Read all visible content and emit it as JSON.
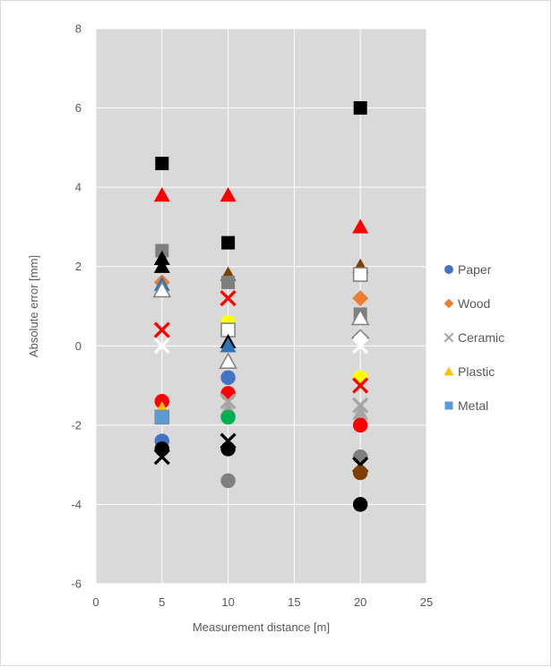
{
  "chart_data": {
    "type": "scatter",
    "title": "",
    "xlabel": "Measurement distance [m]",
    "ylabel": "Absolute error [mm]",
    "xlim": [
      0,
      25
    ],
    "ylim": [
      -6,
      8
    ],
    "x_ticks": [
      "0",
      "5",
      "10",
      "15",
      "20",
      "25"
    ],
    "y_ticks": [
      "-6",
      "-4",
      "-2",
      "0",
      "2",
      "4",
      "6",
      "8"
    ],
    "grid": true,
    "plot_background": "#d9d9d9",
    "legend_position": "right",
    "legend": [
      {
        "name": "Paper",
        "color": "#4472c4",
        "marker": "circle"
      },
      {
        "name": "Wood",
        "color": "#ed7d31",
        "marker": "diamond"
      },
      {
        "name": "Ceramic",
        "color": "#a5a5a5",
        "marker": "x"
      },
      {
        "name": "Plastic",
        "color": "#ffc000",
        "marker": "triangle"
      },
      {
        "name": "Metal",
        "color": "#5b9bd5",
        "marker": "square"
      }
    ],
    "points": [
      {
        "x": 5,
        "y": 4.6,
        "marker": "square",
        "color": "#000000"
      },
      {
        "x": 5,
        "y": 3.8,
        "marker": "triangle",
        "color": "#ff0000"
      },
      {
        "x": 5,
        "y": 2.4,
        "marker": "square",
        "color": "#7f7f7f"
      },
      {
        "x": 5,
        "y": 2.2,
        "marker": "triangle",
        "color": "#000000"
      },
      {
        "x": 5,
        "y": 2.0,
        "marker": "triangle",
        "color": "#000000"
      },
      {
        "x": 5,
        "y": 1.6,
        "marker": "diamond",
        "color": "#ed7d31"
      },
      {
        "x": 5,
        "y": 1.55,
        "marker": "triangle",
        "color": "#2e75b6"
      },
      {
        "x": 5,
        "y": 1.4,
        "marker": "triangle",
        "color": "#ffffff",
        "stroke": "#7f7f7f"
      },
      {
        "x": 5,
        "y": 0.4,
        "marker": "x",
        "color": "#ff0000"
      },
      {
        "x": 5,
        "y": 0.0,
        "marker": "x",
        "color": "#ffffff"
      },
      {
        "x": 5,
        "y": -1.4,
        "marker": "circle",
        "color": "#ff0000"
      },
      {
        "x": 5,
        "y": -1.6,
        "marker": "triangle",
        "color": "#ffc000"
      },
      {
        "x": 5,
        "y": -1.8,
        "marker": "square",
        "color": "#ffffff",
        "stroke": "#7f7f7f"
      },
      {
        "x": 5,
        "y": -1.8,
        "marker": "square",
        "color": "#5b9bd5"
      },
      {
        "x": 5,
        "y": -2.4,
        "marker": "circle",
        "color": "#4472c4"
      },
      {
        "x": 5,
        "y": -2.6,
        "marker": "circle",
        "color": "#000000"
      },
      {
        "x": 5,
        "y": -2.8,
        "marker": "x",
        "color": "#000000"
      },
      {
        "x": 10,
        "y": 3.8,
        "marker": "triangle",
        "color": "#ff0000"
      },
      {
        "x": 10,
        "y": 2.6,
        "marker": "square",
        "color": "#000000"
      },
      {
        "x": 10,
        "y": 1.8,
        "marker": "triangle",
        "color": "#7f3f00"
      },
      {
        "x": 10,
        "y": 1.6,
        "marker": "square",
        "color": "#7f7f7f"
      },
      {
        "x": 10,
        "y": 1.2,
        "marker": "x",
        "color": "#ff0000"
      },
      {
        "x": 10,
        "y": 0.6,
        "marker": "circle",
        "color": "#ffff00"
      },
      {
        "x": 10,
        "y": 0.4,
        "marker": "square",
        "color": "#ffffff",
        "stroke": "#7f7f7f"
      },
      {
        "x": 10,
        "y": 0.1,
        "marker": "triangle",
        "color": "#000000"
      },
      {
        "x": 10,
        "y": 0.0,
        "marker": "triangle",
        "color": "#2e75b6"
      },
      {
        "x": 10,
        "y": -0.4,
        "marker": "triangle",
        "color": "#ffffff",
        "stroke": "#7f7f7f"
      },
      {
        "x": 10,
        "y": -0.8,
        "marker": "circle",
        "color": "#4472c4"
      },
      {
        "x": 10,
        "y": -1.2,
        "marker": "circle",
        "color": "#ff0000"
      },
      {
        "x": 10,
        "y": -1.4,
        "marker": "x",
        "color": "#a5a5a5"
      },
      {
        "x": 10,
        "y": -1.6,
        "marker": "triangle",
        "color": "#a5a5a5"
      },
      {
        "x": 10,
        "y": -1.8,
        "marker": "circle",
        "color": "#00b050"
      },
      {
        "x": 10,
        "y": -2.4,
        "marker": "x",
        "color": "#000000"
      },
      {
        "x": 10,
        "y": -2.6,
        "marker": "circle",
        "color": "#000000"
      },
      {
        "x": 10,
        "y": -3.4,
        "marker": "circle",
        "color": "#7f7f7f"
      },
      {
        "x": 20,
        "y": 6.0,
        "marker": "square",
        "color": "#000000"
      },
      {
        "x": 20,
        "y": 3.0,
        "marker": "triangle",
        "color": "#ff0000"
      },
      {
        "x": 20,
        "y": 2.0,
        "marker": "triangle",
        "color": "#7f3f00"
      },
      {
        "x": 20,
        "y": 1.8,
        "marker": "square",
        "color": "#5b9bd5"
      },
      {
        "x": 20,
        "y": 1.8,
        "marker": "square",
        "color": "#ffffff",
        "stroke": "#7f7f7f"
      },
      {
        "x": 20,
        "y": 1.2,
        "marker": "diamond",
        "color": "#ed7d31"
      },
      {
        "x": 20,
        "y": 0.8,
        "marker": "square",
        "color": "#7f7f7f"
      },
      {
        "x": 20,
        "y": 0.7,
        "marker": "triangle",
        "color": "#ffffff",
        "stroke": "#7f7f7f"
      },
      {
        "x": 20,
        "y": 0.2,
        "marker": "diamond",
        "color": "#ffffff",
        "stroke": "#7f7f7f"
      },
      {
        "x": 20,
        "y": 0.0,
        "marker": "x",
        "color": "#ffffff"
      },
      {
        "x": 20,
        "y": -0.8,
        "marker": "circle",
        "color": "#ffff00"
      },
      {
        "x": 20,
        "y": -1.0,
        "marker": "x",
        "color": "#ff0000"
      },
      {
        "x": 20,
        "y": -1.5,
        "marker": "x",
        "color": "#a5a5a5"
      },
      {
        "x": 20,
        "y": -1.7,
        "marker": "triangle",
        "color": "#a5a5a5"
      },
      {
        "x": 20,
        "y": -2.0,
        "marker": "circle",
        "color": "#ff0000"
      },
      {
        "x": 20,
        "y": -2.8,
        "marker": "circle",
        "color": "#7f7f7f"
      },
      {
        "x": 20,
        "y": -3.0,
        "marker": "x",
        "color": "#000000"
      },
      {
        "x": 20,
        "y": -3.2,
        "marker": "circle",
        "color": "#7f3f00"
      },
      {
        "x": 20,
        "y": -4.0,
        "marker": "circle",
        "color": "#000000"
      }
    ]
  }
}
